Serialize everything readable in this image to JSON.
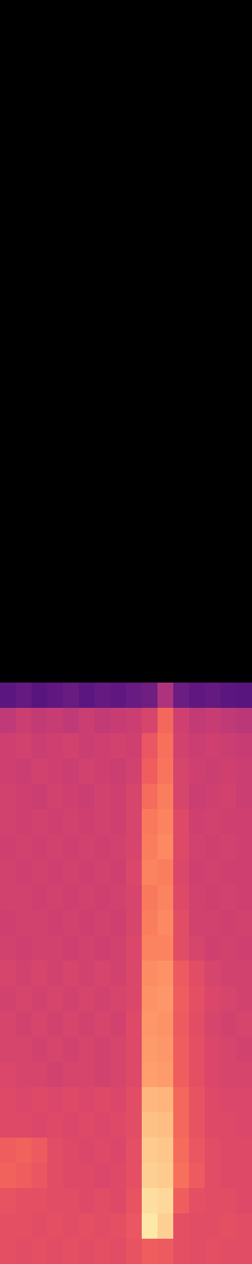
{
  "chart_data": {
    "type": "heatmap",
    "color": "magma",
    "tick_labels": false,
    "zlim": [
      0,
      1
    ],
    "z": [
      [
        0.28,
        0.3,
        0.27,
        0.29,
        0.31,
        0.28,
        0.3,
        0.29,
        0.31,
        0.33,
        0.48,
        0.32,
        0.29,
        0.3,
        0.28,
        0.27
      ],
      [
        0.52,
        0.55,
        0.53,
        0.54,
        0.52,
        0.55,
        0.53,
        0.54,
        0.55,
        0.58,
        0.68,
        0.56,
        0.53,
        0.54,
        0.52,
        0.51
      ],
      [
        0.56,
        0.57,
        0.55,
        0.56,
        0.57,
        0.55,
        0.56,
        0.57,
        0.56,
        0.64,
        0.7,
        0.57,
        0.55,
        0.56,
        0.55,
        0.54
      ],
      [
        0.56,
        0.55,
        0.57,
        0.56,
        0.55,
        0.57,
        0.56,
        0.55,
        0.57,
        0.66,
        0.71,
        0.58,
        0.56,
        0.55,
        0.56,
        0.55
      ],
      [
        0.57,
        0.56,
        0.55,
        0.57,
        0.56,
        0.55,
        0.57,
        0.56,
        0.58,
        0.69,
        0.73,
        0.58,
        0.55,
        0.56,
        0.57,
        0.55
      ],
      [
        0.57,
        0.56,
        0.57,
        0.56,
        0.57,
        0.56,
        0.57,
        0.56,
        0.58,
        0.72,
        0.74,
        0.6,
        0.56,
        0.57,
        0.56,
        0.56
      ],
      [
        0.56,
        0.57,
        0.56,
        0.57,
        0.56,
        0.57,
        0.56,
        0.57,
        0.58,
        0.73,
        0.75,
        0.6,
        0.57,
        0.56,
        0.57,
        0.56
      ],
      [
        0.57,
        0.56,
        0.57,
        0.56,
        0.57,
        0.56,
        0.57,
        0.56,
        0.59,
        0.74,
        0.73,
        0.59,
        0.56,
        0.57,
        0.56,
        0.56
      ],
      [
        0.57,
        0.57,
        0.56,
        0.57,
        0.56,
        0.57,
        0.56,
        0.57,
        0.58,
        0.72,
        0.74,
        0.6,
        0.57,
        0.56,
        0.57,
        0.56
      ],
      [
        0.56,
        0.57,
        0.57,
        0.56,
        0.57,
        0.56,
        0.57,
        0.56,
        0.58,
        0.73,
        0.75,
        0.61,
        0.57,
        0.57,
        0.56,
        0.57
      ],
      [
        0.57,
        0.56,
        0.57,
        0.57,
        0.56,
        0.57,
        0.56,
        0.57,
        0.59,
        0.74,
        0.74,
        0.61,
        0.58,
        0.56,
        0.57,
        0.56
      ],
      [
        0.58,
        0.57,
        0.58,
        0.57,
        0.58,
        0.57,
        0.58,
        0.57,
        0.59,
        0.76,
        0.77,
        0.65,
        0.61,
        0.58,
        0.57,
        0.57
      ],
      [
        0.57,
        0.58,
        0.57,
        0.58,
        0.57,
        0.58,
        0.57,
        0.58,
        0.59,
        0.77,
        0.78,
        0.66,
        0.62,
        0.59,
        0.58,
        0.57
      ],
      [
        0.58,
        0.57,
        0.58,
        0.57,
        0.58,
        0.57,
        0.58,
        0.57,
        0.6,
        0.78,
        0.77,
        0.65,
        0.61,
        0.58,
        0.57,
        0.58
      ],
      [
        0.58,
        0.58,
        0.57,
        0.58,
        0.57,
        0.58,
        0.57,
        0.58,
        0.6,
        0.79,
        0.78,
        0.66,
        0.62,
        0.59,
        0.58,
        0.57
      ],
      [
        0.59,
        0.58,
        0.58,
        0.57,
        0.58,
        0.58,
        0.57,
        0.58,
        0.6,
        0.8,
        0.79,
        0.66,
        0.62,
        0.59,
        0.58,
        0.58
      ],
      [
        0.6,
        0.59,
        0.6,
        0.59,
        0.6,
        0.59,
        0.6,
        0.59,
        0.61,
        0.85,
        0.84,
        0.68,
        0.63,
        0.6,
        0.59,
        0.59
      ],
      [
        0.6,
        0.6,
        0.59,
        0.6,
        0.59,
        0.6,
        0.59,
        0.6,
        0.61,
        0.87,
        0.86,
        0.68,
        0.63,
        0.6,
        0.6,
        0.59
      ],
      [
        0.66,
        0.67,
        0.65,
        0.61,
        0.6,
        0.59,
        0.6,
        0.59,
        0.62,
        0.89,
        0.88,
        0.69,
        0.64,
        0.61,
        0.6,
        0.6
      ],
      [
        0.67,
        0.66,
        0.64,
        0.61,
        0.6,
        0.6,
        0.59,
        0.6,
        0.62,
        0.9,
        0.89,
        0.7,
        0.65,
        0.61,
        0.6,
        0.6
      ],
      [
        0.63,
        0.62,
        0.62,
        0.61,
        0.61,
        0.6,
        0.61,
        0.6,
        0.63,
        0.93,
        0.92,
        0.66,
        0.62,
        0.61,
        0.61,
        0.6
      ],
      [
        0.62,
        0.62,
        0.61,
        0.62,
        0.61,
        0.62,
        0.61,
        0.62,
        0.64,
        0.95,
        0.9,
        0.62,
        0.61,
        0.61,
        0.62,
        0.61
      ],
      [
        0.62,
        0.61,
        0.62,
        0.61,
        0.62,
        0.61,
        0.62,
        0.61,
        0.63,
        0.66,
        0.65,
        0.62,
        0.61,
        0.62,
        0.61,
        0.61
      ]
    ]
  }
}
